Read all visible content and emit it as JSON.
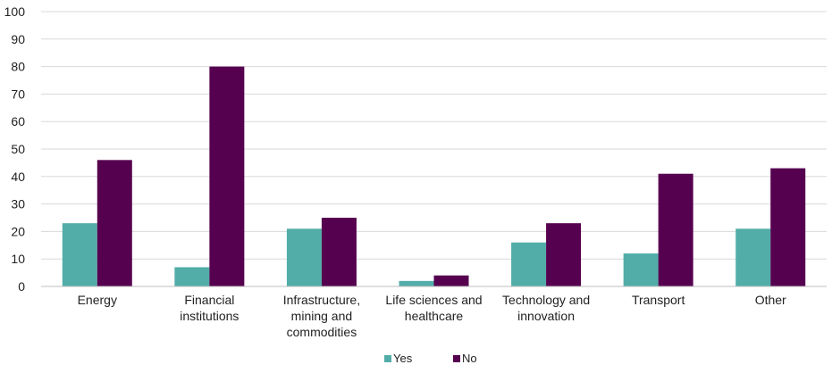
{
  "chart_data": {
    "type": "bar",
    "categories": [
      [
        "Energy"
      ],
      [
        "Financial",
        "institutions"
      ],
      [
        "Infrastructure,",
        "mining and",
        "commodities"
      ],
      [
        "Life sciences and",
        "healthcare"
      ],
      [
        "Technology and",
        "innovation"
      ],
      [
        "Transport"
      ],
      [
        "Other"
      ]
    ],
    "series": [
      {
        "name": "Yes",
        "color": "#52ADA9",
        "values": [
          23,
          7,
          21,
          2,
          16,
          12,
          21
        ]
      },
      {
        "name": "No",
        "color": "#560050",
        "values": [
          46,
          80,
          25,
          4,
          23,
          41,
          43
        ]
      }
    ],
    "ylim": [
      0,
      100
    ],
    "yticks": [
      0,
      10,
      20,
      30,
      40,
      50,
      60,
      70,
      80,
      90,
      100
    ],
    "grid": true,
    "legend_position": "bottom-center",
    "gridline_color": "#D9D9D9",
    "axis_color": "#BFBFBF"
  }
}
